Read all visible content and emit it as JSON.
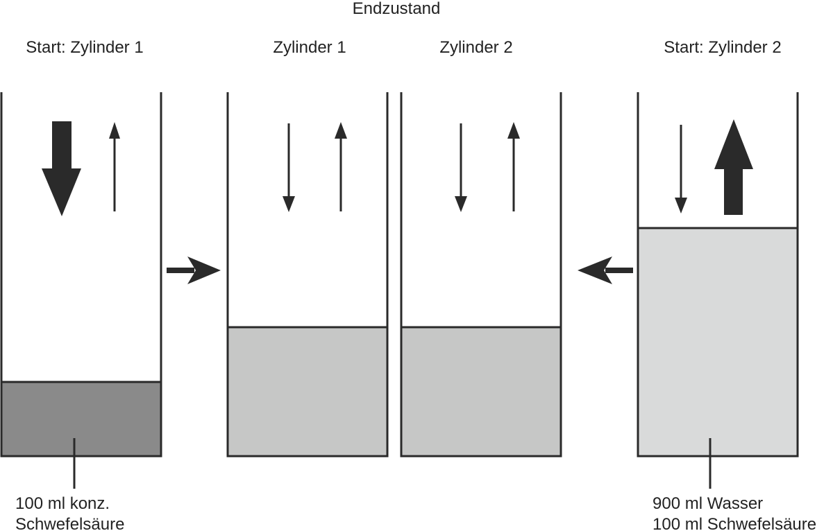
{
  "header": {
    "title": "Endzustand"
  },
  "cylinders": [
    {
      "label": "Start: Zylinder 1"
    },
    {
      "label": "Zylinder 1"
    },
    {
      "label": "Zylinder 2"
    },
    {
      "label": "Start: Zylinder 2"
    }
  ],
  "annotations": [
    {
      "lines": [
        "100 ml konz.",
        "Schwefelsäure"
      ]
    },
    {
      "lines": [
        "900 ml Wasser",
        "100 ml Schwefelsäure"
      ]
    }
  ]
}
